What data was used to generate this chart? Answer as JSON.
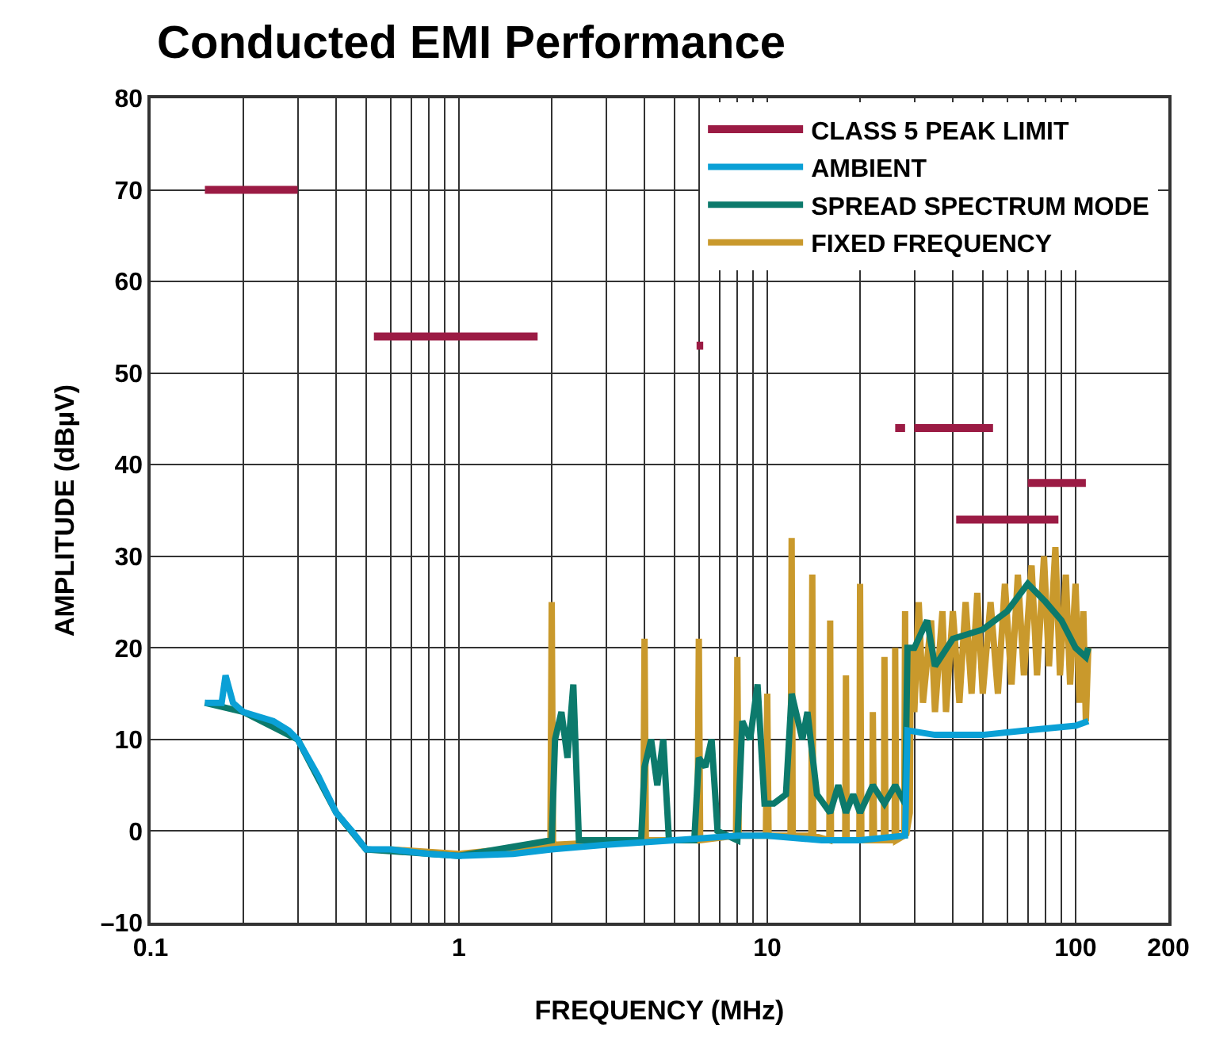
{
  "chart_data": {
    "type": "line",
    "title": "Conducted EMI Performance",
    "xlabel": "FREQUENCY (MHz)",
    "ylabel": "AMPLITUDE (dBµV)",
    "log": "x",
    "grid": true,
    "legend": "top right",
    "line_style": "solid",
    "marker": "none",
    "xlim": [
      0.1,
      200
    ],
    "xticks": [
      0.1,
      1,
      10,
      100,
      200
    ],
    "ylim": [
      -10,
      80
    ],
    "yticks": [
      {
        "value": -10,
        "label": "–10"
      },
      0,
      10,
      20,
      30,
      40,
      50,
      60,
      70,
      80
    ],
    "series": [
      {
        "name": "CLASS 5 PEAK LIMIT",
        "color": "#9b1b44",
        "x": [
          0.15,
          0.3,
          null,
          0.53,
          1.8,
          null,
          5.9,
          6.2,
          null,
          26,
          28,
          null,
          30,
          54,
          null,
          41,
          88,
          null,
          70,
          108
        ],
        "values": [
          70,
          70,
          null,
          54,
          54,
          null,
          53,
          53,
          null,
          44,
          44,
          null,
          44,
          44,
          null,
          34,
          34,
          null,
          38,
          38
        ]
      },
      {
        "name": "AMBIENT",
        "color": "#0aa0d6",
        "x": [
          0.15,
          0.17,
          0.175,
          0.185,
          0.2,
          0.25,
          0.28,
          0.3,
          0.35,
          0.4,
          0.45,
          0.5,
          0.6,
          0.8,
          1,
          1.5,
          2,
          3,
          5,
          8,
          10,
          15,
          20,
          28,
          28.5,
          35,
          50,
          70,
          100,
          110
        ],
        "values": [
          14,
          14,
          17,
          14,
          13,
          12,
          11,
          10,
          6,
          2,
          0,
          -2,
          -2,
          -2.5,
          -2.7,
          -2.5,
          -2,
          -1.5,
          -1,
          -0.5,
          -0.5,
          -1,
          -1,
          -0.5,
          11,
          10.5,
          10.5,
          11,
          11.5,
          12
        ]
      },
      {
        "name": "SPREAD SPECTRUM MODE",
        "color": "#0c7a6c",
        "x": [
          0.15,
          0.2,
          0.3,
          0.4,
          0.5,
          1,
          2,
          2.05,
          2.15,
          2.25,
          2.35,
          2.45,
          3.9,
          4,
          4.2,
          4.4,
          4.6,
          4.8,
          5.8,
          6,
          6.3,
          6.6,
          6.9,
          8,
          8.3,
          8.8,
          9.3,
          9.8,
          10.5,
          11.5,
          12,
          13,
          13.5,
          14.5,
          16,
          17,
          18,
          19,
          20,
          22,
          24,
          26,
          28,
          28.5,
          30,
          33,
          35,
          40,
          50,
          60,
          70,
          80,
          90,
          100,
          108,
          110
        ],
        "values": [
          14,
          13,
          10,
          2,
          -2,
          -2.7,
          -1,
          10,
          13,
          8,
          16,
          -1,
          -1,
          7,
          10,
          5,
          10,
          -1,
          -1,
          8,
          7,
          10,
          0,
          -1,
          12,
          10,
          16,
          3,
          3,
          4,
          15,
          10,
          13,
          4,
          2,
          5,
          2,
          4,
          2,
          5,
          3,
          5,
          3,
          20,
          20,
          23,
          18,
          21,
          22,
          24,
          27,
          25,
          23,
          20,
          19,
          20
        ]
      },
      {
        "name": "FIXED FREQUENCY",
        "color": "#c9992c",
        "x": [
          0.6,
          1,
          1.98,
          2,
          2.02,
          3.96,
          4,
          4.04,
          5.94,
          6,
          6.06,
          7.92,
          8,
          8.08,
          9.9,
          10,
          10.1,
          11.9,
          12,
          12.1,
          13.9,
          14,
          14.1,
          15.9,
          16,
          16.1,
          17.9,
          18,
          18.1,
          19.9,
          20,
          20.2,
          21.9,
          22,
          22.2,
          23.9,
          24,
          24.2,
          25.9,
          26,
          26.2,
          27.8,
          28,
          28.2,
          29,
          29.2,
          30,
          31,
          32,
          34,
          35,
          37,
          38,
          40,
          42,
          44,
          46,
          48,
          50,
          53,
          56,
          59,
          62,
          65,
          68,
          72,
          75,
          79,
          82,
          86,
          89,
          93,
          96,
          100,
          103,
          106,
          108,
          110
        ],
        "values": [
          -2,
          -2.5,
          -1.5,
          25,
          -1.5,
          -1,
          21,
          -1,
          -1,
          21,
          -1,
          -0.5,
          19,
          -0.5,
          -0.5,
          15,
          -0.5,
          -0.5,
          32,
          -0.5,
          -0.5,
          28,
          -0.5,
          -1,
          23,
          -1,
          -1,
          17,
          -1,
          -1,
          27,
          -1,
          -1,
          13,
          -1,
          -1,
          19,
          -1,
          -1,
          20,
          -1,
          -0.5,
          24,
          -0.5,
          2,
          20,
          13,
          25,
          14,
          23,
          13,
          24,
          13,
          24,
          14,
          25,
          15,
          26,
          15,
          25,
          15,
          27,
          16,
          28,
          17,
          29,
          17,
          30,
          18,
          31,
          17,
          28,
          16,
          27,
          14,
          24,
          12,
          20
        ]
      }
    ]
  }
}
